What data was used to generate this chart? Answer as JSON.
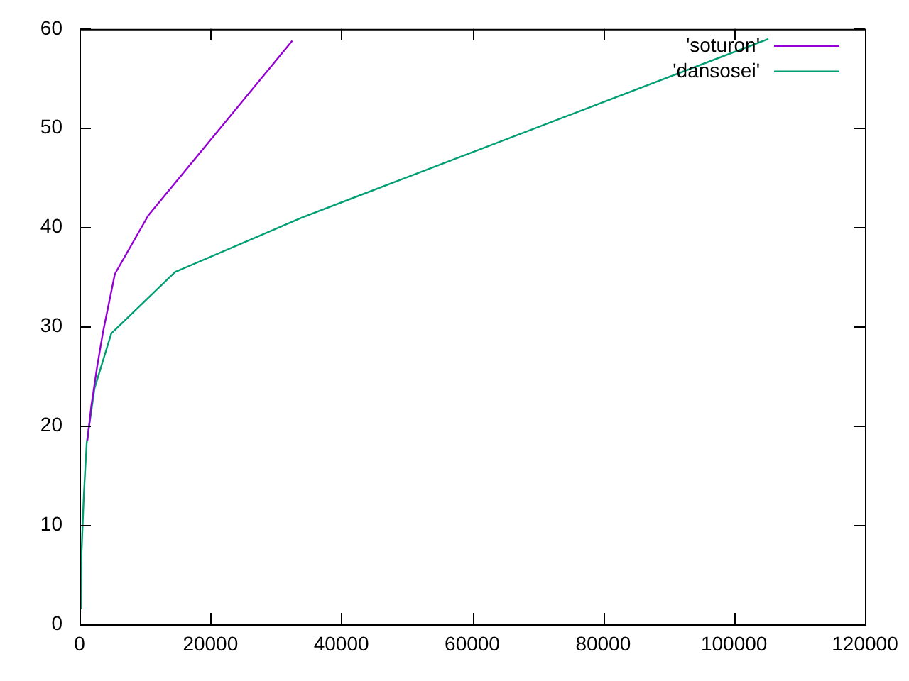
{
  "chart_data": {
    "type": "line",
    "xlim": [
      0,
      120000
    ],
    "xticks": [
      0,
      20000,
      40000,
      60000,
      80000,
      100000,
      120000
    ],
    "ylim": [
      0,
      60
    ],
    "yticks": [
      0,
      10,
      20,
      30,
      40,
      50,
      60
    ],
    "grid": false,
    "legend": "top right",
    "marker": "none",
    "line_style": "solid",
    "series": [
      {
        "name": "'soturon'",
        "color": "#9400d3",
        "x": [
          1200,
          1800,
          2700,
          3600,
          5400,
          10500,
          32500
        ],
        "values": [
          18.5,
          22,
          26,
          29.5,
          35.3,
          41.2,
          58.8
        ]
      },
      {
        "name": "'dansosei'",
        "color": "#009e73",
        "x": [
          200,
          300,
          650,
          1100,
          2300,
          4850,
          14600,
          34000,
          105250
        ],
        "values": [
          1.5,
          7.1,
          12.9,
          18.3,
          23.8,
          29.3,
          35.5,
          41,
          59
        ]
      }
    ]
  }
}
